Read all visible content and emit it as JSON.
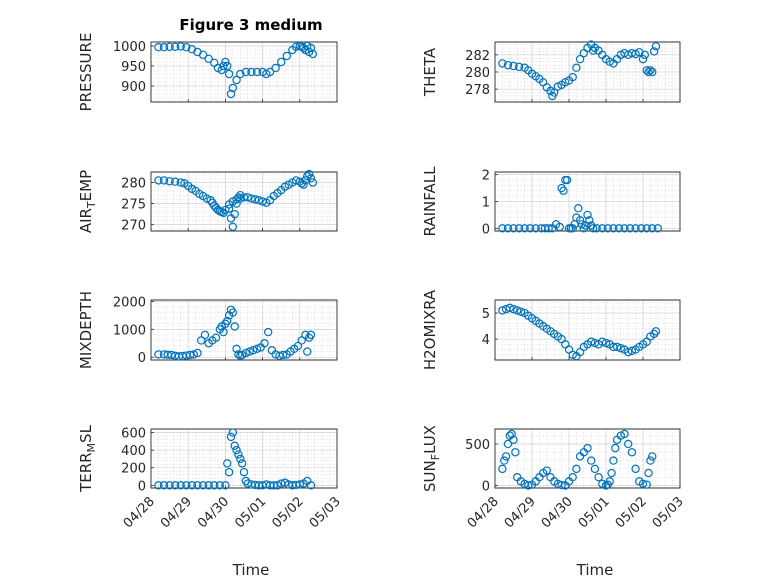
{
  "figure_title": "Figure 3 medium",
  "chart_data": [
    {
      "type": "scatter",
      "ylabel": "PRESSURE",
      "ylim": [
        860,
        1010
      ],
      "yticks": [
        900,
        950,
        1000
      ],
      "xlim": [
        0,
        5
      ],
      "x": [
        0.2,
        0.35,
        0.5,
        0.65,
        0.8,
        0.95,
        1.1,
        1.25,
        1.4,
        1.55,
        1.7,
        1.8,
        1.9,
        1.95,
        2.0,
        2.05,
        2.1,
        2.15,
        2.2,
        2.3,
        2.4,
        2.55,
        2.7,
        2.85,
        3.0,
        3.1,
        3.2,
        3.35,
        3.5,
        3.65,
        3.8,
        3.9,
        4.0,
        4.05,
        4.1,
        4.15,
        4.2,
        4.25,
        4.3,
        4.35
      ],
      "y": [
        997,
        997,
        998,
        998,
        999,
        997,
        992,
        985,
        978,
        968,
        958,
        945,
        940,
        950,
        960,
        950,
        930,
        880,
        895,
        915,
        930,
        935,
        935,
        935,
        935,
        930,
        935,
        945,
        960,
        975,
        990,
        998,
        1000,
        998,
        995,
        990,
        1000,
        985,
        995,
        980
      ]
    },
    {
      "type": "scatter",
      "ylabel": "THETA",
      "ylim": [
        276.5,
        283.5
      ],
      "yticks": [
        278,
        280,
        282
      ],
      "xlim": [
        0,
        5
      ],
      "x": [
        0.2,
        0.35,
        0.5,
        0.65,
        0.8,
        0.9,
        1.0,
        1.1,
        1.2,
        1.3,
        1.4,
        1.5,
        1.55,
        1.6,
        1.7,
        1.8,
        1.9,
        2.0,
        2.1,
        2.2,
        2.3,
        2.4,
        2.5,
        2.6,
        2.65,
        2.7,
        2.8,
        2.9,
        3.0,
        3.1,
        3.2,
        3.3,
        3.4,
        3.5,
        3.6,
        3.7,
        3.8,
        3.9,
        4.0,
        4.05,
        4.1,
        4.15,
        4.2,
        4.25,
        4.3,
        4.35
      ],
      "y": [
        281,
        280.8,
        280.7,
        280.6,
        280.5,
        280.2,
        279.8,
        279.5,
        279.2,
        278.8,
        278.2,
        277.8,
        277.2,
        277.6,
        278.3,
        278.5,
        278.8,
        279,
        279.4,
        280.5,
        281.5,
        282.2,
        282.8,
        283.2,
        282.5,
        282.8,
        282.5,
        282,
        281.5,
        281.2,
        281,
        281.5,
        282,
        282.2,
        282,
        282.2,
        282.1,
        282.3,
        281.5,
        282,
        280.2,
        280,
        280.2,
        280,
        282.4,
        283
      ]
    },
    {
      "type": "scatter",
      "ylabel": "AIR_TEMP",
      "ylim": [
        268.5,
        282.5
      ],
      "yticks": [
        270,
        275,
        280
      ],
      "xlim": [
        0,
        5
      ],
      "x": [
        0.2,
        0.35,
        0.5,
        0.65,
        0.8,
        0.9,
        1.0,
        1.1,
        1.2,
        1.3,
        1.4,
        1.5,
        1.6,
        1.65,
        1.7,
        1.75,
        1.8,
        1.85,
        1.9,
        1.95,
        2.0,
        2.1,
        2.2,
        2.3,
        2.4,
        2.5,
        2.6,
        2.7,
        2.8,
        2.9,
        3.0,
        3.1,
        3.2,
        3.3,
        3.4,
        3.5,
        3.6,
        3.7,
        3.8,
        3.9,
        4.0,
        4.05,
        4.1,
        4.15,
        4.2,
        4.25,
        4.3,
        4.35
      ],
      "y": [
        280.5,
        280.5,
        280.3,
        280.2,
        280,
        279.8,
        279.2,
        278.5,
        278,
        277.3,
        276.8,
        276.2,
        275.8,
        275.2,
        274.5,
        274,
        273.5,
        273.2,
        273,
        272.8,
        273.5,
        274.8,
        275.5,
        276,
        276.2,
        276.5,
        276.5,
        276.2,
        276,
        275.8,
        275.5,
        275.2,
        275.8,
        276.8,
        277.5,
        278.2,
        279,
        279.5,
        280,
        280.5,
        280.2,
        279.8,
        279.5,
        280.5,
        281.5,
        282,
        281,
        280
      ],
      "extra_x": [
        2.1,
        2.15,
        2.2,
        2.3,
        2.35,
        2.25,
        2.4
      ],
      "extra_y": [
        273.8,
        271.5,
        269.5,
        275,
        276.5,
        272.5,
        277
      ]
    },
    {
      "type": "scatter",
      "ylabel": "RAINFALL",
      "ylim": [
        -0.1,
        2.1
      ],
      "yticks": [
        0,
        1,
        2
      ],
      "xlim": [
        0,
        5
      ],
      "x": [
        0.2,
        0.35,
        0.5,
        0.65,
        0.8,
        0.95,
        1.1,
        1.25,
        1.35,
        1.45,
        1.55,
        1.65,
        1.75,
        1.8,
        1.85,
        1.9,
        1.95,
        2.0,
        2.05,
        2.1,
        2.15,
        2.2,
        2.25,
        2.3,
        2.35,
        2.4,
        2.45,
        2.5,
        2.55,
        2.6,
        2.65,
        2.75,
        2.9,
        3.05,
        3.2,
        3.35,
        3.5,
        3.65,
        3.8,
        3.95,
        4.1,
        4.25,
        4.4
      ],
      "y": [
        0,
        0,
        0,
        0,
        0,
        0,
        0,
        0,
        0,
        0,
        0,
        0.15,
        0.05,
        1.5,
        1.4,
        1.8,
        1.8,
        0,
        0,
        0,
        0.15,
        0.4,
        0.75,
        0.3,
        0.15,
        0,
        0.1,
        0.5,
        0.3,
        0.1,
        0,
        0,
        0,
        0,
        0,
        0,
        0,
        0,
        0,
        0,
        0,
        0,
        0
      ]
    },
    {
      "type": "scatter",
      "ylabel": "MIXDEPTH",
      "ylim": [
        -100,
        2050
      ],
      "yticks": [
        0,
        1000,
        2000
      ],
      "xlim": [
        0,
        5
      ],
      "x": [
        0.2,
        0.35,
        0.45,
        0.55,
        0.65,
        0.75,
        0.85,
        0.95,
        1.05,
        1.15,
        1.25,
        1.35,
        1.45,
        1.55,
        1.65,
        1.75,
        1.85,
        1.9,
        1.95,
        2.0,
        2.05,
        2.1,
        2.15,
        2.2,
        2.25,
        2.3,
        2.35,
        2.4,
        2.45,
        2.55,
        2.65,
        2.75,
        2.85,
        2.95,
        3.05,
        3.15,
        3.25,
        3.35,
        3.45,
        3.55,
        3.65,
        3.75,
        3.85,
        3.95,
        4.05,
        4.15,
        4.2,
        4.25,
        4.3
      ],
      "y": [
        100,
        100,
        90,
        80,
        50,
        30,
        40,
        60,
        80,
        100,
        150,
        600,
        800,
        500,
        600,
        700,
        1000,
        1100,
        900,
        1200,
        1300,
        1500,
        1700,
        1600,
        1100,
        300,
        100,
        50,
        80,
        150,
        200,
        250,
        300,
        350,
        500,
        900,
        250,
        100,
        50,
        80,
        100,
        200,
        300,
        400,
        600,
        800,
        200,
        700,
        800
      ]
    },
    {
      "type": "scatter",
      "ylabel": "H2OMIXRA",
      "ylim": [
        3.2,
        5.5
      ],
      "yticks": [
        4,
        5
      ],
      "xlim": [
        0,
        5
      ],
      "x": [
        0.2,
        0.3,
        0.4,
        0.5,
        0.6,
        0.7,
        0.8,
        0.9,
        1.0,
        1.1,
        1.2,
        1.3,
        1.4,
        1.5,
        1.6,
        1.7,
        1.8,
        1.9,
        2.0,
        2.1,
        2.2,
        2.3,
        2.4,
        2.5,
        2.6,
        2.7,
        2.8,
        2.9,
        3.0,
        3.1,
        3.2,
        3.3,
        3.4,
        3.5,
        3.6,
        3.7,
        3.8,
        3.9,
        4.0,
        4.1,
        4.2,
        4.3,
        4.35
      ],
      "y": [
        5.1,
        5.15,
        5.2,
        5.15,
        5.1,
        5.05,
        5,
        4.9,
        4.8,
        4.7,
        4.6,
        4.5,
        4.4,
        4.3,
        4.2,
        4.1,
        4,
        3.8,
        3.6,
        3.4,
        3.35,
        3.5,
        3.7,
        3.8,
        3.9,
        3.85,
        3.8,
        3.9,
        3.85,
        3.8,
        3.7,
        3.7,
        3.65,
        3.6,
        3.5,
        3.55,
        3.6,
        3.7,
        3.8,
        3.9,
        4.1,
        4.2,
        4.3
      ]
    },
    {
      "type": "scatter",
      "ylabel": "TERR_MSL",
      "ylim": [
        -30,
        640
      ],
      "yticks": [
        0,
        200,
        400,
        600
      ],
      "xlim": [
        0,
        5
      ],
      "x": [
        0.2,
        0.35,
        0.5,
        0.65,
        0.8,
        0.95,
        1.1,
        1.25,
        1.4,
        1.55,
        1.7,
        1.85,
        2.0,
        2.05,
        2.1,
        2.15,
        2.2,
        2.25,
        2.3,
        2.35,
        2.4,
        2.45,
        2.5,
        2.55,
        2.6,
        2.7,
        2.8,
        2.9,
        3.0,
        3.1,
        3.2,
        3.3,
        3.4,
        3.5,
        3.6,
        3.7,
        3.8,
        3.9,
        4.0,
        4.1,
        4.2,
        4.3
      ],
      "y": [
        0,
        0,
        0,
        0,
        0,
        0,
        0,
        0,
        0,
        0,
        0,
        0,
        0,
        250,
        150,
        550,
        600,
        450,
        400,
        350,
        300,
        250,
        150,
        50,
        20,
        10,
        5,
        0,
        0,
        10,
        0,
        0,
        0,
        20,
        30,
        10,
        0,
        5,
        10,
        20,
        50,
        0
      ]
    },
    {
      "type": "scatter",
      "ylabel": "SUN_FLUX",
      "ylim": [
        -30,
        680
      ],
      "yticks": [
        0,
        500
      ],
      "xlim": [
        0,
        5
      ],
      "x": [
        0.2,
        0.25,
        0.3,
        0.35,
        0.4,
        0.45,
        0.5,
        0.55,
        0.6,
        0.7,
        0.8,
        0.9,
        1.0,
        1.1,
        1.2,
        1.3,
        1.4,
        1.5,
        1.6,
        1.7,
        1.8,
        1.9,
        2.0,
        2.1,
        2.2,
        2.3,
        2.4,
        2.5,
        2.6,
        2.7,
        2.8,
        2.9,
        3.0,
        3.05,
        3.1,
        3.15,
        3.2,
        3.25,
        3.3,
        3.4,
        3.5,
        3.6,
        3.7,
        3.8,
        3.9,
        4.0,
        4.1,
        4.15,
        4.2,
        4.25
      ],
      "y": [
        200,
        300,
        350,
        500,
        600,
        620,
        550,
        400,
        100,
        50,
        20,
        0,
        10,
        50,
        100,
        150,
        180,
        100,
        50,
        20,
        5,
        0,
        50,
        100,
        200,
        350,
        400,
        450,
        300,
        200,
        100,
        20,
        0,
        10,
        50,
        150,
        300,
        450,
        550,
        600,
        620,
        500,
        400,
        200,
        50,
        20,
        10,
        150,
        300,
        350
      ]
    }
  ],
  "x_tick_labels": [
    "04/28",
    "04/29",
    "04/30",
    "05/01",
    "05/02",
    "05/03"
  ],
  "xlabel": "Time",
  "style": {
    "marker_color": "#0072bd",
    "grid_color": "#cccccc"
  }
}
